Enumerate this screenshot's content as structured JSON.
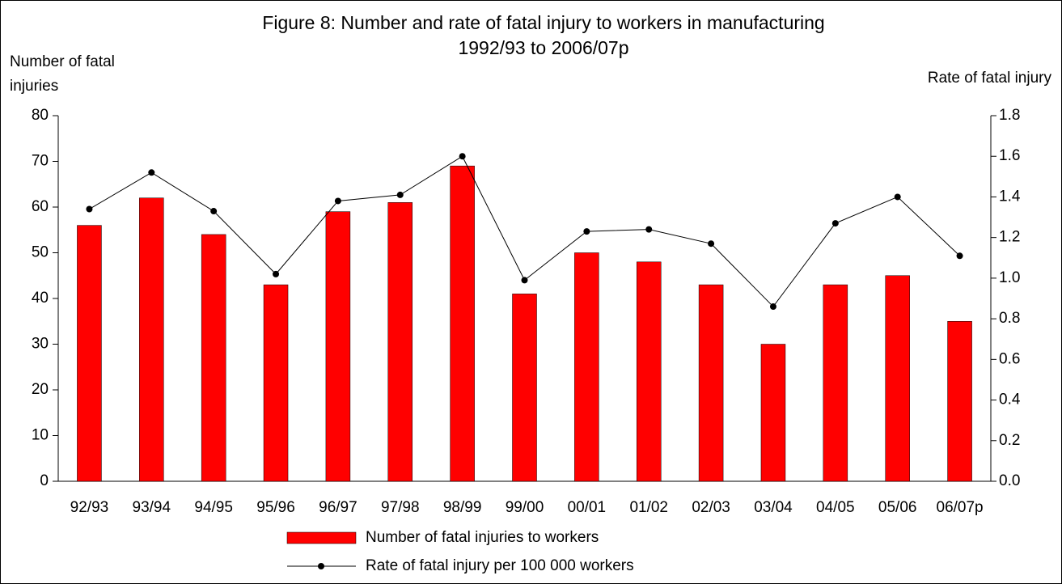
{
  "chart_data": {
    "type": "bar",
    "title": "Figure 8:  Number and rate of fatal injury to workers in manufacturing",
    "subtitle": "1992/93 to 2006/07p",
    "ylabel": "Number of fatal injuries",
    "y2label": "Rate of fatal injury",
    "categories": [
      "92/93",
      "93/94",
      "94/95",
      "95/96",
      "96/97",
      "97/98",
      "98/99",
      "99/00",
      "00/01",
      "01/02",
      "02/03",
      "03/04",
      "04/05",
      "05/06",
      "06/07p"
    ],
    "series": [
      {
        "name": "Number of fatal injuries to workers",
        "type": "bar",
        "color": "#ff0000",
        "values": [
          56,
          62,
          54,
          43,
          59,
          61,
          69,
          41,
          50,
          48,
          43,
          30,
          43,
          45,
          35
        ]
      },
      {
        "name": "Rate of fatal injury per 100 000 workers",
        "type": "line",
        "color": "#000000",
        "axis": "y2",
        "values": [
          1.34,
          1.52,
          1.33,
          1.02,
          1.38,
          1.41,
          1.6,
          0.99,
          1.23,
          1.24,
          1.17,
          0.86,
          1.27,
          1.4,
          1.11
        ]
      }
    ],
    "ylim": [
      0,
      80
    ],
    "yticks": [
      0,
      10,
      20,
      30,
      40,
      50,
      60,
      70,
      80
    ],
    "y2lim": [
      0,
      1.8
    ],
    "y2ticks": [
      {
        "value": 0,
        "label": "0.0"
      },
      0.2,
      0.4,
      0.6,
      0.8,
      {
        "value": 1,
        "label": "1.0"
      },
      1.2,
      1.4,
      1.6,
      1.8
    ],
    "grid": false,
    "legend": "bottom"
  }
}
